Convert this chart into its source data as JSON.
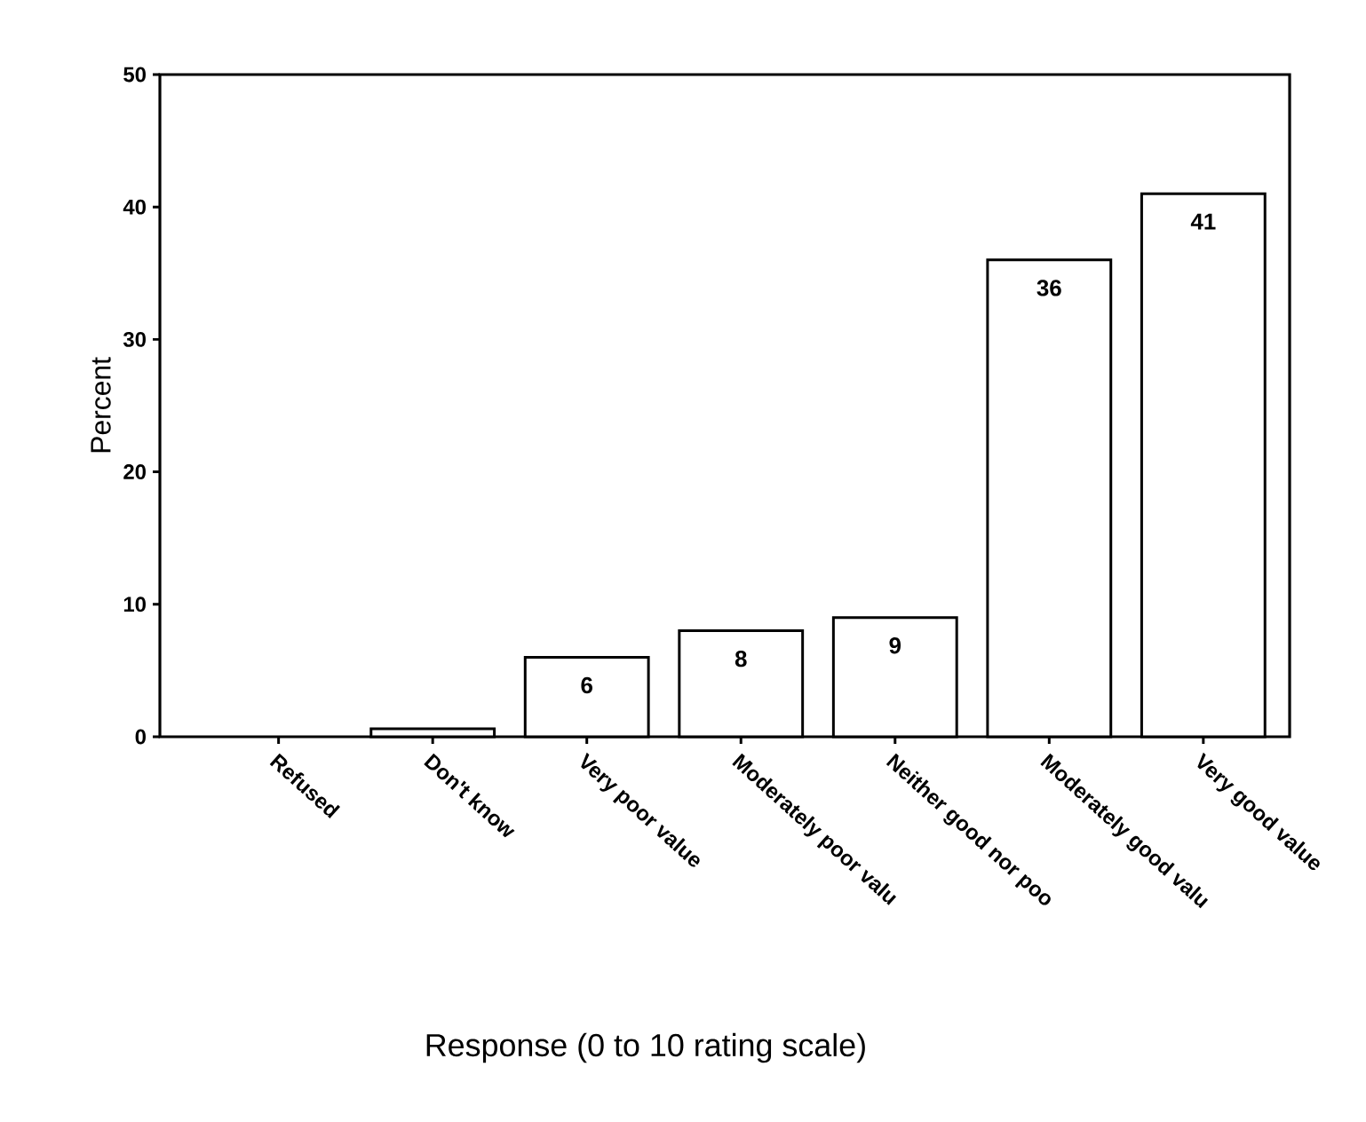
{
  "chart_data": {
    "type": "bar",
    "xlabel": "Response (0 to 10 rating scale)",
    "ylabel": "Percent",
    "categories": [
      "Refused",
      "Don't know",
      "Very poor value",
      "Moderately poor valu",
      "Neither good nor poo",
      "Moderately good valu",
      "Very good value"
    ],
    "values": [
      0,
      0.6,
      6,
      8,
      9,
      36,
      41
    ],
    "value_labels": [
      null,
      null,
      "6",
      "8",
      "9",
      "36",
      "41"
    ],
    "color": "#ffffff",
    "ylim": [
      0,
      50
    ],
    "yticks": [
      0,
      10,
      20,
      30,
      40,
      50
    ],
    "grid": false
  }
}
